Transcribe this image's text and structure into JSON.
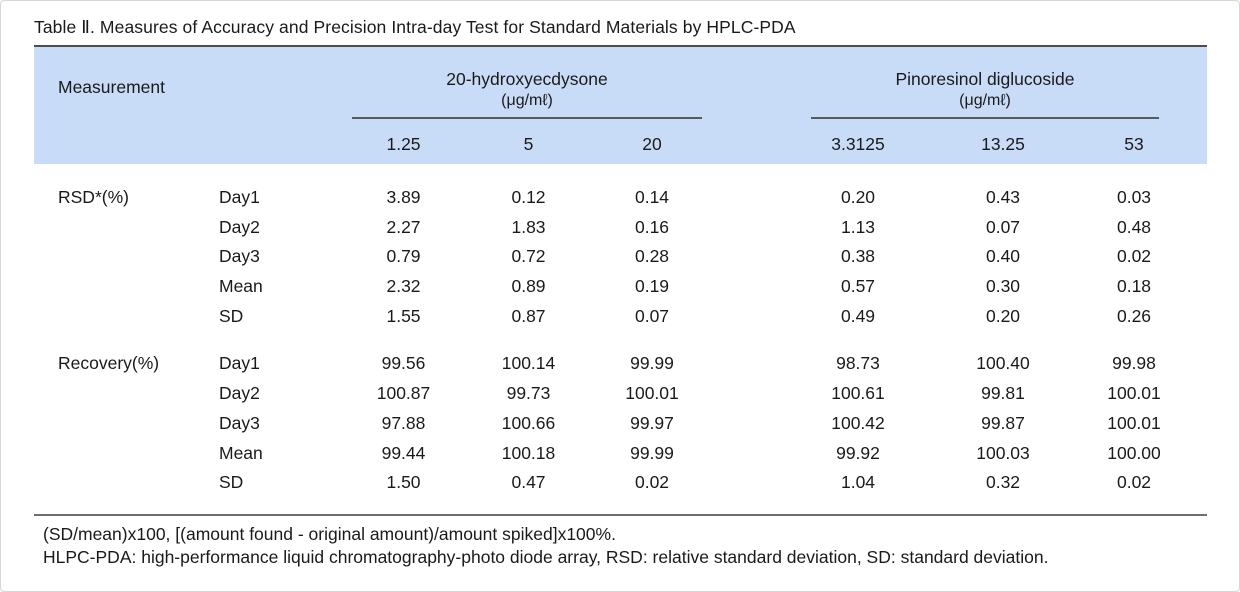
{
  "title": "Table Ⅱ. Measures of Accuracy and Precision Intra-day Test for Standard Materials by HPLC-PDA",
  "header": {
    "measurement_label": "Measurement",
    "groups": [
      {
        "name": "20-hydroxyecdysone",
        "unit": "(μg/mℓ)",
        "concentrations": [
          "1.25",
          "5",
          "20"
        ]
      },
      {
        "name": "Pinoresinol diglucoside",
        "unit": "(μg/mℓ)",
        "concentrations": [
          "3.3125",
          "13.25",
          "53"
        ]
      }
    ]
  },
  "sections": [
    {
      "id": "rsd",
      "label": "RSD*(%)",
      "rows": [
        {
          "label": "Day1",
          "values": [
            "3.89",
            "0.12",
            "0.14",
            "0.20",
            "0.43",
            "0.03"
          ]
        },
        {
          "label": "Day2",
          "values": [
            "2.27",
            "1.83",
            "0.16",
            "1.13",
            "0.07",
            "0.48"
          ]
        },
        {
          "label": "Day3",
          "values": [
            "0.79",
            "0.72",
            "0.28",
            "0.38",
            "0.40",
            "0.02"
          ]
        },
        {
          "label": "Mean",
          "values": [
            "2.32",
            "0.89",
            "0.19",
            "0.57",
            "0.30",
            "0.18"
          ]
        },
        {
          "label": "SD",
          "values": [
            "1.55",
            "0.87",
            "0.07",
            "0.49",
            "0.20",
            "0.26"
          ]
        }
      ]
    },
    {
      "id": "recovery",
      "label": "Recovery(%)",
      "rows": [
        {
          "label": "Day1",
          "values": [
            "99.56",
            "100.14",
            "99.99",
            "98.73",
            "100.40",
            "99.98"
          ]
        },
        {
          "label": "Day2",
          "values": [
            "100.87",
            "99.73",
            "100.01",
            "100.61",
            "99.81",
            "100.01"
          ]
        },
        {
          "label": "Day3",
          "values": [
            "97.88",
            "100.66",
            "99.97",
            "100.42",
            "99.87",
            "100.01"
          ]
        },
        {
          "label": "Mean",
          "values": [
            "99.44",
            "100.18",
            "99.99",
            "99.92",
            "100.03",
            "100.00"
          ]
        },
        {
          "label": "SD",
          "values": [
            "1.50",
            "0.47",
            "0.02",
            "1.04",
            "0.32",
            "0.02"
          ]
        }
      ]
    }
  ],
  "footnotes": [
    "(SD/mean)x100, [(amount found - original amount)/amount spiked]x100%.",
    "HLPC-PDA: high-performance liquid chromatography-photo diode array, RSD: relative standard deviation, SD: standard deviation."
  ],
  "colors": {
    "header_bg": "#c9dcf7",
    "title_rule": "#4d4d4d",
    "group_rule": "#555a60",
    "bottom_rule": "#6e6e6e",
    "text": "#1a1a1a",
    "card_border": "#d3d7db"
  }
}
